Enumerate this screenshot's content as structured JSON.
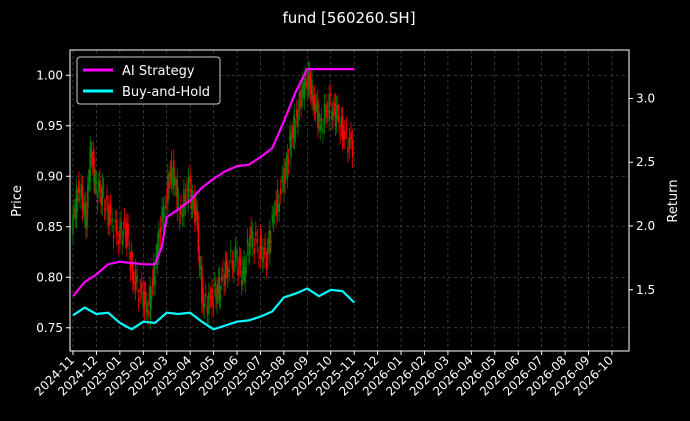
{
  "chart_data": {
    "type": "line",
    "title": "fund [560260.SH]",
    "ylabel_left": "Price",
    "ylabel_right": "Return",
    "grid": true,
    "legend_position": "top-left",
    "x_ticks": [
      "2024-11",
      "2024-12",
      "2025-01",
      "2025-02",
      "2025-03",
      "2025-04",
      "2025-05",
      "2025-06",
      "2025-07",
      "2025-08",
      "2025-09",
      "2025-10",
      "2025-11",
      "2025-12",
      "2026-01",
      "2026-02",
      "2026-03",
      "2026-04",
      "2026-05",
      "2026-06",
      "2026-07",
      "2026-08",
      "2026-09",
      "2026-10"
    ],
    "x_range": [
      "2024-11",
      "2026-10.6"
    ],
    "y_left": {
      "range": [
        0.727,
        1.025
      ],
      "ticks": [
        0.75,
        0.8,
        0.85,
        0.9,
        0.95,
        1.0
      ]
    },
    "y_right": {
      "range": [
        1.02,
        3.38
      ],
      "ticks": [
        1.5,
        2.0,
        2.5,
        3.0
      ]
    },
    "series": [
      {
        "name": "AI Strategy",
        "axis": "right",
        "color": "#ff00ff",
        "points": [
          [
            "2024-11",
            1.45
          ],
          [
            "2024-11.5",
            1.56
          ],
          [
            "2024-12",
            1.62
          ],
          [
            "2024-12.5",
            1.7
          ],
          [
            "2025-01",
            1.72
          ],
          [
            "2025-01.5",
            1.71
          ],
          [
            "2025-02",
            1.7
          ],
          [
            "2025-02.5",
            1.7
          ],
          [
            "2025-02.8",
            1.84
          ],
          [
            "2025-03",
            2.07
          ],
          [
            "2025-03.5",
            2.13
          ],
          [
            "2025-04",
            2.2
          ],
          [
            "2025-04.5",
            2.3
          ],
          [
            "2025-05",
            2.37
          ],
          [
            "2025-05.5",
            2.43
          ],
          [
            "2025-06",
            2.47
          ],
          [
            "2025-06.5",
            2.48
          ],
          [
            "2025-07",
            2.54
          ],
          [
            "2025-07.5",
            2.61
          ],
          [
            "2025-08",
            2.82
          ],
          [
            "2025-08.5",
            3.05
          ],
          [
            "2025-09",
            3.23
          ],
          [
            "2025-09.5",
            3.23
          ],
          [
            "2025-10",
            3.23
          ],
          [
            "2025-10.5",
            3.23
          ],
          [
            "2025-11",
            3.23
          ]
        ]
      },
      {
        "name": "Buy-and-Hold",
        "axis": "right",
        "color": "#00ffff",
        "points": [
          [
            "2024-11",
            1.3
          ],
          [
            "2024-11.5",
            1.36
          ],
          [
            "2024-12",
            1.31
          ],
          [
            "2024-12.5",
            1.32
          ],
          [
            "2025-01",
            1.24
          ],
          [
            "2025-01.5",
            1.19
          ],
          [
            "2025-02",
            1.25
          ],
          [
            "2025-02.5",
            1.24
          ],
          [
            "2025-03",
            1.32
          ],
          [
            "2025-03.5",
            1.31
          ],
          [
            "2025-04",
            1.32
          ],
          [
            "2025-04.5",
            1.25
          ],
          [
            "2025-05",
            1.19
          ],
          [
            "2025-05.5",
            1.22
          ],
          [
            "2025-06",
            1.25
          ],
          [
            "2025-06.5",
            1.26
          ],
          [
            "2025-07",
            1.29
          ],
          [
            "2025-07.5",
            1.33
          ],
          [
            "2025-08",
            1.44
          ],
          [
            "2025-08.5",
            1.47
          ],
          [
            "2025-09",
            1.51
          ],
          [
            "2025-09.5",
            1.45
          ],
          [
            "2025-10",
            1.5
          ],
          [
            "2025-10.5",
            1.49
          ],
          [
            "2025-11",
            1.4
          ]
        ]
      },
      {
        "name": "Price",
        "type": "candlestick",
        "axis": "left",
        "color_up": "#008000",
        "color_down": "#ff0000",
        "points": [
          [
            "2024-11",
            0.85
          ],
          [
            "2024-11.3",
            0.89
          ],
          [
            "2024-11.6",
            0.86
          ],
          [
            "2024-11.8",
            0.93
          ],
          [
            "2024-12",
            0.89
          ],
          [
            "2024-12.3",
            0.88
          ],
          [
            "2024-12.6",
            0.86
          ],
          [
            "2025-01",
            0.84
          ],
          [
            "2025-01.3",
            0.85
          ],
          [
            "2025-01.6",
            0.8
          ],
          [
            "2025-02",
            0.78
          ],
          [
            "2025-02.3",
            0.77
          ],
          [
            "2025-02.6",
            0.82
          ],
          [
            "2025-03",
            0.88
          ],
          [
            "2025-03.3",
            0.91
          ],
          [
            "2025-03.6",
            0.86
          ],
          [
            "2025-04",
            0.89
          ],
          [
            "2025-04.3",
            0.86
          ],
          [
            "2025-04.6",
            0.77
          ],
          [
            "2025-05",
            0.78
          ],
          [
            "2025-05.3",
            0.79
          ],
          [
            "2025-05.6",
            0.81
          ],
          [
            "2025-06",
            0.82
          ],
          [
            "2025-06.3",
            0.8
          ],
          [
            "2025-06.6",
            0.84
          ],
          [
            "2025-07",
            0.83
          ],
          [
            "2025-07.3",
            0.82
          ],
          [
            "2025-07.6",
            0.86
          ],
          [
            "2025-08",
            0.89
          ],
          [
            "2025-08.3",
            0.93
          ],
          [
            "2025-08.6",
            0.96
          ],
          [
            "2025-09",
            1.0
          ],
          [
            "2025-09.3",
            0.98
          ],
          [
            "2025-09.6",
            0.95
          ],
          [
            "2025-10",
            0.97
          ],
          [
            "2025-10.3",
            0.96
          ],
          [
            "2025-10.6",
            0.94
          ],
          [
            "2025-11",
            0.93
          ]
        ]
      }
    ]
  }
}
